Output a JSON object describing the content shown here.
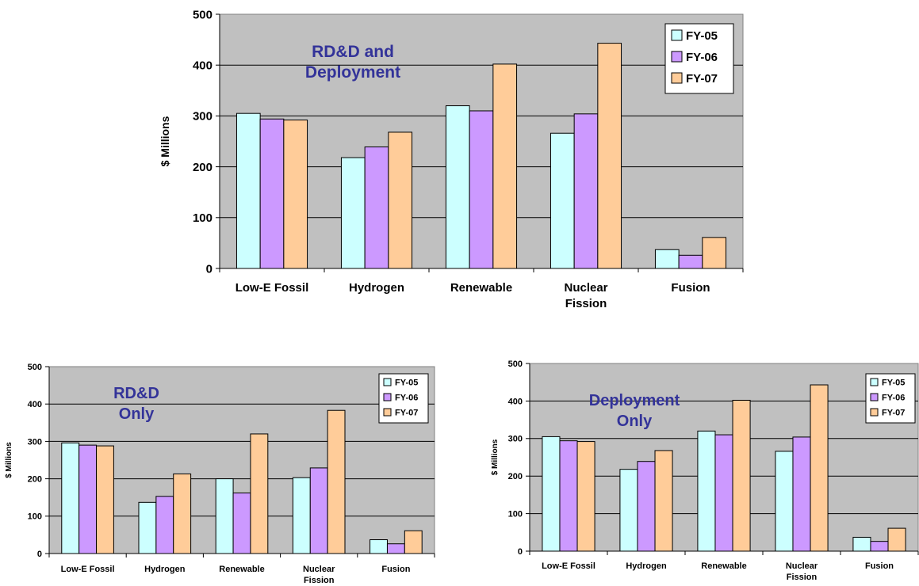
{
  "colors": {
    "plot_bg": "#c0c0c0",
    "grid": "#000000",
    "fy05": "#ccffff",
    "fy06": "#cc99ff",
    "fy07": "#ffcc99",
    "title": "#333399"
  },
  "chart_data": [
    {
      "type": "bar",
      "title": "RD&D and Deployment",
      "title_lines": [
        "RD&D and",
        "Deployment"
      ],
      "ylabel": "$ Millions",
      "xlabel": "",
      "ylim": [
        0,
        500
      ],
      "yticks": [
        0,
        100,
        200,
        300,
        400,
        500
      ],
      "grid": true,
      "legend": "top-right",
      "categories": [
        "Low-E Fossil",
        "Hydrogen",
        "Renewable",
        "Nuclear Fission",
        "Fusion"
      ],
      "category_lines": [
        [
          "Low-E Fossil"
        ],
        [
          "Hydrogen"
        ],
        [
          "Renewable"
        ],
        [
          "Nuclear",
          "Fission"
        ],
        [
          "Fusion"
        ]
      ],
      "series": [
        {
          "name": "FY-05",
          "values": [
            305,
            218,
            320,
            266,
            37
          ]
        },
        {
          "name": "FY-06",
          "values": [
            294,
            239,
            310,
            304,
            26
          ]
        },
        {
          "name": "FY-07",
          "values": [
            292,
            268,
            402,
            443,
            61
          ]
        }
      ]
    },
    {
      "type": "bar",
      "title": "RD&D Only",
      "title_lines": [
        "RD&D",
        "Only"
      ],
      "ylabel": "$ Millions",
      "xlabel": "",
      "ylim": [
        0,
        500
      ],
      "yticks": [
        0,
        100,
        200,
        300,
        400,
        500
      ],
      "grid": true,
      "legend": "top-right",
      "categories": [
        "Low-E Fossil",
        "Hydrogen",
        "Renewable",
        "Nuclear Fission",
        "Fusion"
      ],
      "category_lines": [
        [
          "Low-E Fossil"
        ],
        [
          "Hydrogen"
        ],
        [
          "Renewable"
        ],
        [
          "Nuclear",
          "Fission"
        ],
        [
          "Fusion"
        ]
      ],
      "series": [
        {
          "name": "FY-05",
          "values": [
            296,
            137,
            200,
            203,
            37
          ]
        },
        {
          "name": "FY-06",
          "values": [
            290,
            153,
            162,
            229,
            26
          ]
        },
        {
          "name": "FY-07",
          "values": [
            288,
            213,
            320,
            383,
            61
          ]
        }
      ]
    },
    {
      "type": "bar",
      "title": "Deployment Only",
      "title_lines": [
        "Deployment",
        "Only"
      ],
      "ylabel": "$ Millions",
      "xlabel": "",
      "ylim": [
        0,
        500
      ],
      "yticks": [
        0,
        100,
        200,
        300,
        400,
        500
      ],
      "grid": true,
      "legend": "top-right",
      "categories": [
        "Low-E Fossil",
        "Hydrogen",
        "Renewable",
        "Nuclear Fission",
        "Fusion"
      ],
      "category_lines": [
        [
          "Low-E Fossil"
        ],
        [
          "Hydrogen"
        ],
        [
          "Renewable"
        ],
        [
          "Nuclear",
          "Fission"
        ],
        [
          "Fusion"
        ]
      ],
      "series": [
        {
          "name": "FY-05",
          "values": [
            305,
            218,
            320,
            266,
            37
          ]
        },
        {
          "name": "FY-06",
          "values": [
            294,
            239,
            310,
            304,
            26
          ]
        },
        {
          "name": "FY-07",
          "values": [
            292,
            268,
            402,
            443,
            61
          ]
        }
      ]
    }
  ]
}
